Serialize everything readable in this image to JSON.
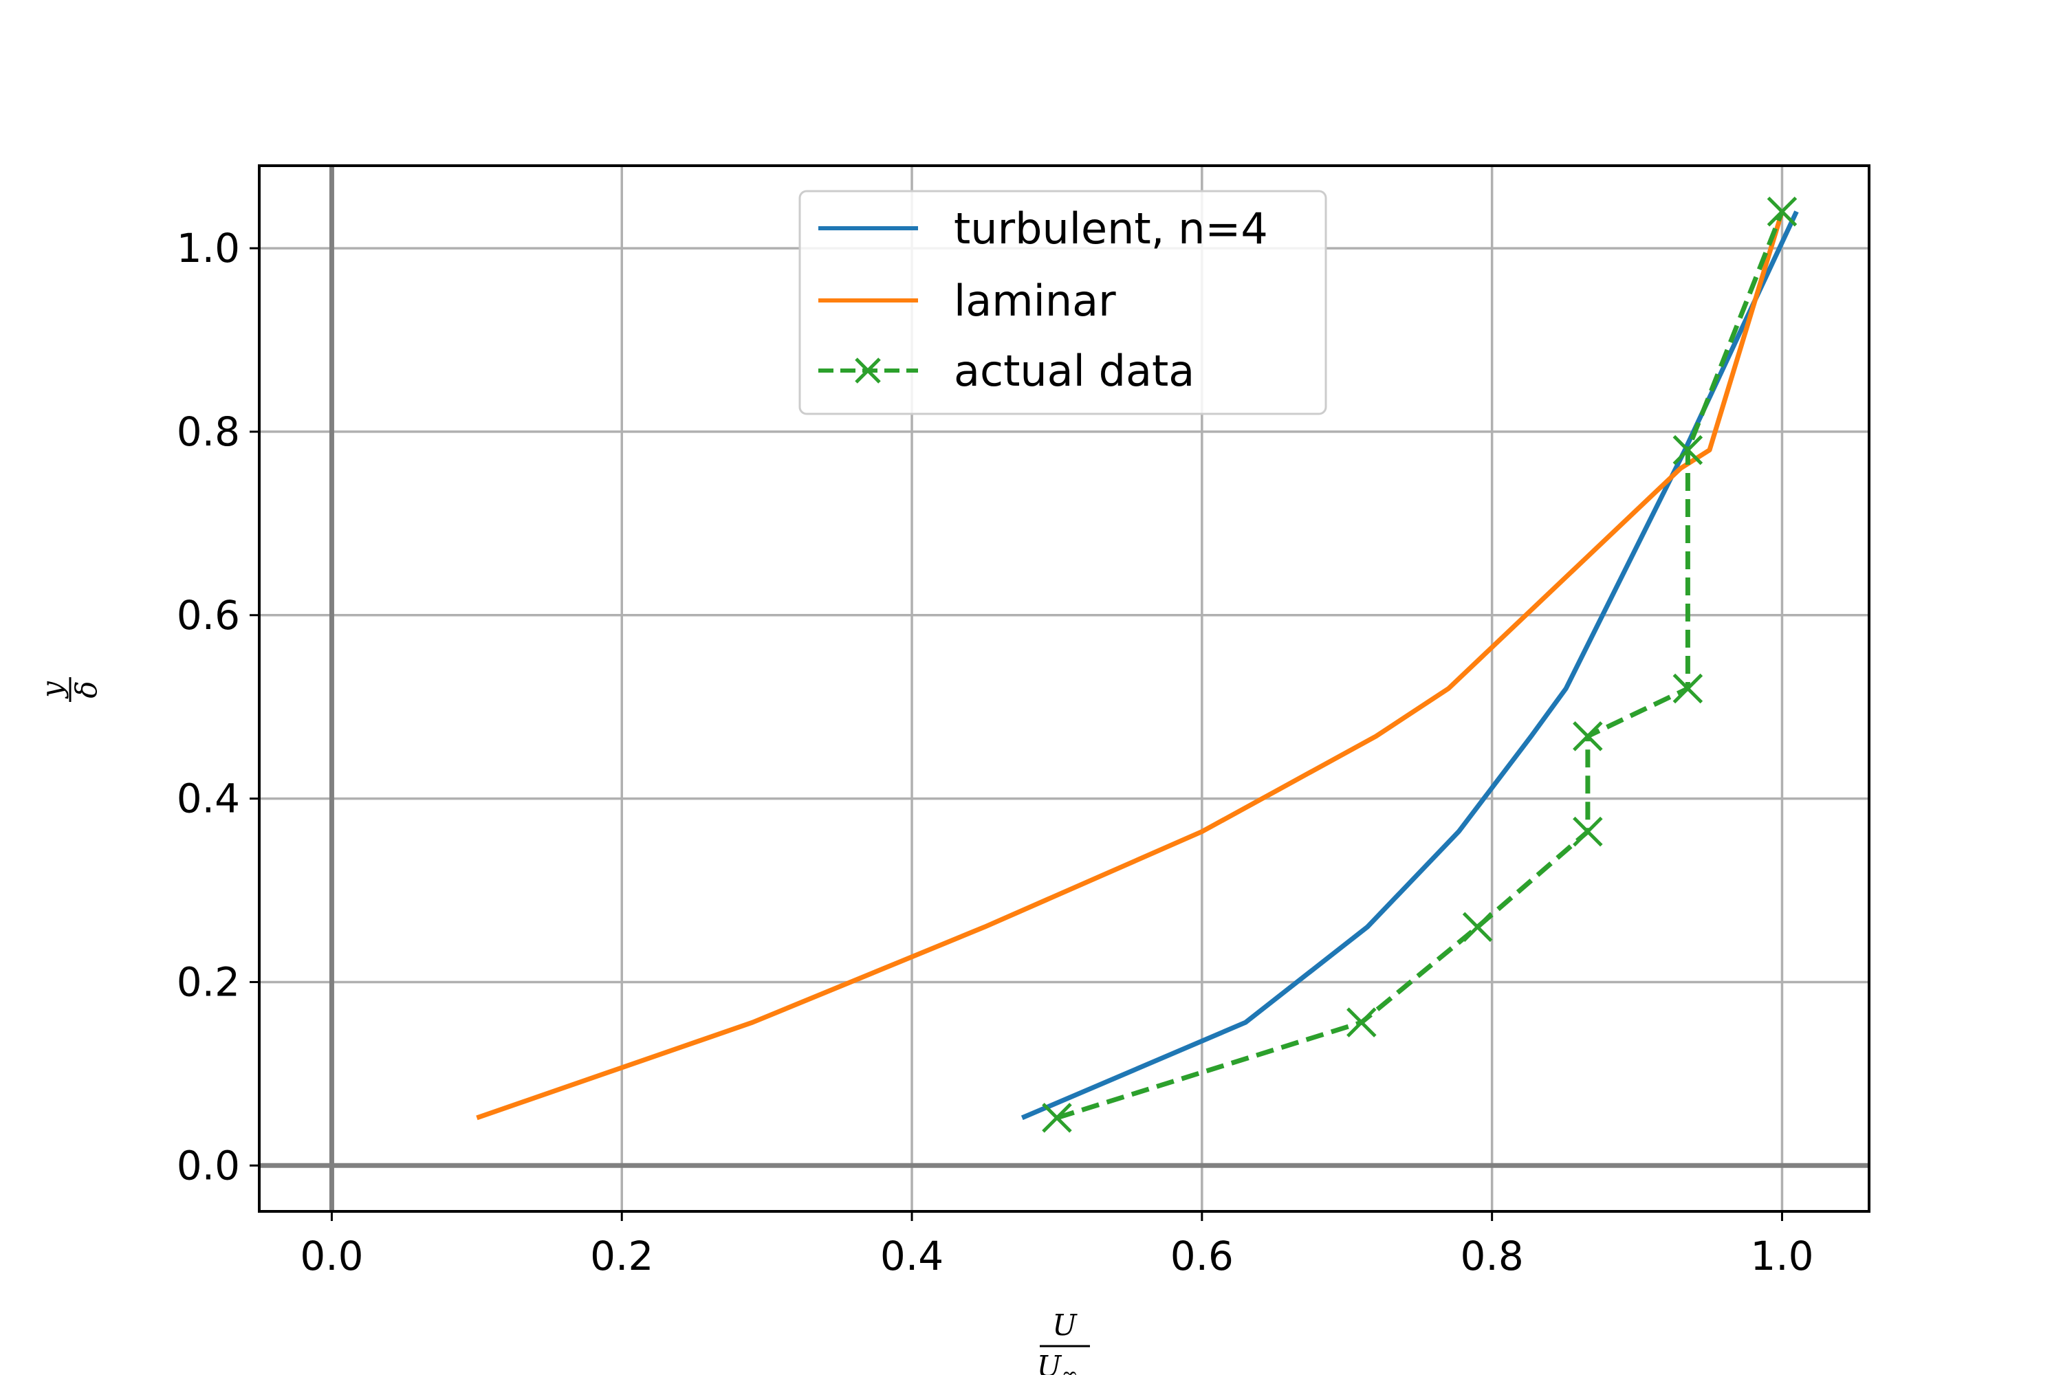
{
  "chart_data": {
    "type": "line",
    "title": "",
    "xlabel": {
      "numerator": "U",
      "denominator": "U",
      "denominator_subscript": "∞"
    },
    "ylabel": {
      "numerator": "y",
      "denominator": "δ"
    },
    "xlim": [
      -0.05,
      1.06
    ],
    "ylim": [
      -0.05,
      1.09
    ],
    "xticks": [
      0.0,
      0.2,
      0.4,
      0.6,
      0.8,
      1.0
    ],
    "yticks": [
      0.0,
      0.2,
      0.4,
      0.6,
      0.8,
      1.0
    ],
    "xtick_labels": [
      "0.0",
      "0.2",
      "0.4",
      "0.6",
      "0.8",
      "1.0"
    ],
    "ytick_labels": [
      "0.0",
      "0.2",
      "0.4",
      "0.6",
      "0.8",
      "1.0"
    ],
    "grid": true,
    "zero_lines": true,
    "legend_position": "upper center",
    "series": [
      {
        "name": "turbulent, n=4",
        "color": "#1f77b4",
        "style": "solid",
        "marker": "none",
        "x": [
          0.476,
          0.63,
          0.714,
          0.777,
          0.827,
          0.851,
          0.933,
          1.01
        ],
        "y": [
          0.052,
          0.156,
          0.26,
          0.364,
          0.468,
          0.52,
          0.78,
          1.04
        ]
      },
      {
        "name": "laminar",
        "color": "#ff7f0e",
        "style": "solid",
        "marker": "none",
        "x": [
          0.1,
          0.29,
          0.45,
          0.6,
          0.72,
          0.77,
          0.93,
          0.95,
          1.0
        ],
        "y": [
          0.052,
          0.156,
          0.26,
          0.364,
          0.468,
          0.52,
          0.76,
          0.78,
          1.04
        ]
      },
      {
        "name": "actual data",
        "color": "#2ca02c",
        "style": "dashed",
        "marker": "x",
        "x": [
          0.5,
          0.71,
          0.79,
          0.866,
          0.866,
          0.935,
          0.935,
          1.0
        ],
        "y": [
          0.052,
          0.156,
          0.26,
          0.364,
          0.468,
          0.52,
          0.78,
          1.04
        ]
      }
    ]
  }
}
